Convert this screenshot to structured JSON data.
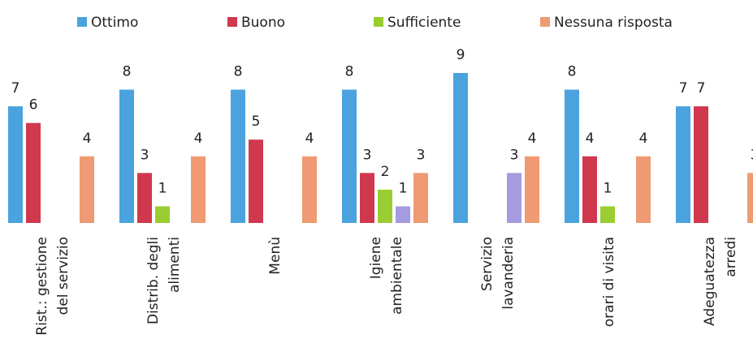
{
  "chart_data": {
    "type": "bar",
    "categories": [
      [
        "Rist.: gestione",
        "del servizio"
      ],
      [
        "Distrib. degli",
        "alimenti"
      ],
      [
        "Menù"
      ],
      [
        "Igiene",
        "ambientale"
      ],
      [
        "Servizio",
        "lavanderia"
      ],
      [
        "orari di visita"
      ],
      [
        "Adeguatezza",
        "arredi"
      ]
    ],
    "series": [
      {
        "name": "Ottimo",
        "color": "#4aa3df",
        "values": [
          7,
          8,
          8,
          8,
          9,
          8,
          7
        ]
      },
      {
        "name": "Buono",
        "color": "#d0384e",
        "values": [
          6,
          3,
          5,
          3,
          null,
          4,
          7
        ]
      },
      {
        "name": "Sufficiente",
        "color": "#9acd32",
        "values": [
          null,
          1,
          null,
          2,
          null,
          1,
          null
        ]
      },
      {
        "color": "#a59be0",
        "values": [
          null,
          null,
          null,
          1,
          3,
          null,
          null
        ]
      },
      {
        "name": "Nessuna risposta",
        "color": "#ef9a72",
        "values": [
          4,
          4,
          4,
          3,
          4,
          4,
          3
        ]
      }
    ]
  }
}
